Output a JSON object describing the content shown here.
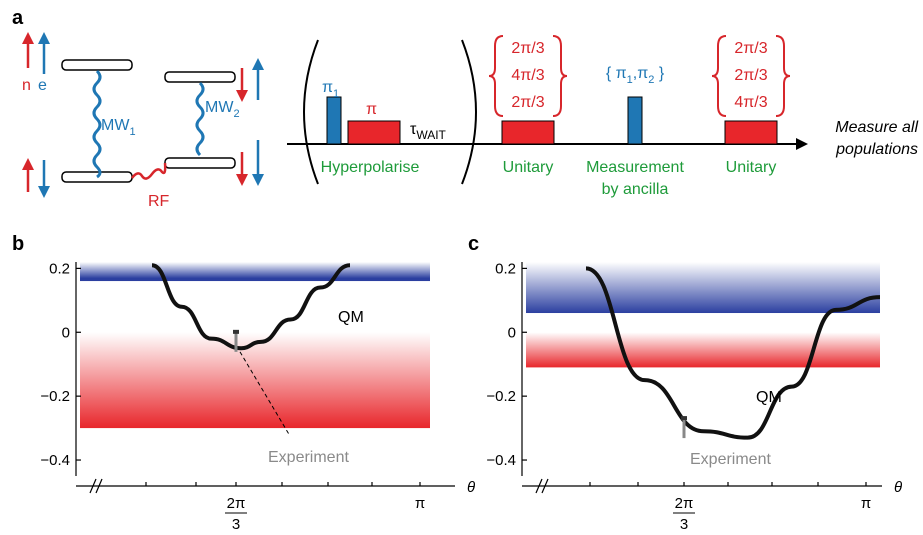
{
  "panels": {
    "a": "a",
    "b": "b",
    "c": "c"
  },
  "diagram": {
    "spin_labels": {
      "n": "n",
      "e": "e"
    },
    "mw1": "MW",
    "mw1_sub": "1",
    "mw2": "MW",
    "mw2_sub": "2",
    "rf": "RF",
    "pi1": "π",
    "pi1_sub": "1",
    "pi": "π",
    "tau": "τ",
    "tau_sub": "WAIT",
    "hyperpolarise": "Hyperpolarise",
    "unitary_left": "Unitary",
    "measurement_line1": "Measurement",
    "measurement_line2": "by ancilla",
    "unitary_right": "Unitary",
    "set_left": [
      "2π/3",
      "4π/3",
      "2π/3"
    ],
    "set_mid": "π1,π2",
    "set_mid_parts": [
      "π",
      "1",
      ",π",
      "2"
    ],
    "set_right": [
      "2π/3",
      "2π/3",
      "4π/3"
    ],
    "measure_line1": "Measure all",
    "measure_line2": "populations"
  },
  "chart_data": [
    {
      "type": "line",
      "panel": "b",
      "ylim": [
        -0.45,
        0.22
      ],
      "yticks": [
        "0.2",
        "0",
        "−0.2",
        "−0.4"
      ],
      "yticks_values": [
        0.2,
        0,
        -0.2,
        -0.4
      ],
      "xticks": [
        "2π",
        "3",
        "π"
      ],
      "xlabel": "θ",
      "bands": {
        "blue_line": 0.16,
        "red_bottom": -0.3
      },
      "series": [
        {
          "name": "QM",
          "x_frac": [
            0.0,
            0.15,
            0.3,
            0.45,
            0.55,
            0.7,
            0.85,
            1.0
          ],
          "y": [
            0.21,
            0.08,
            -0.02,
            -0.05,
            -0.03,
            0.04,
            0.14,
            0.21
          ]
        }
      ],
      "experiment": {
        "label": "Experiment",
        "value": -0.03
      },
      "qm_label": "QM"
    },
    {
      "type": "line",
      "panel": "c",
      "ylim": [
        -0.45,
        0.22
      ],
      "yticks": [
        "0.2",
        "0",
        "−0.2",
        "−0.4"
      ],
      "yticks_values": [
        0.2,
        0,
        -0.2,
        -0.4
      ],
      "xticks": [
        "2π",
        "3",
        "π"
      ],
      "xlabel": "θ",
      "bands": {
        "blue_line": 0.06,
        "red_bottom": -0.11
      },
      "series": [
        {
          "name": "QM",
          "x_frac": [
            0.0,
            0.2,
            0.4,
            0.55,
            0.7,
            0.85,
            1.0
          ],
          "y": [
            0.2,
            -0.15,
            -0.31,
            -0.33,
            -0.17,
            0.07,
            0.11
          ]
        }
      ],
      "experiment": {
        "label": "Experiment",
        "value": -0.3
      },
      "qm_label": "QM"
    }
  ],
  "colors": {
    "red": "#d7262b",
    "blue": "#1f77b4",
    "green": "#1e9b3a",
    "band_blue": "#2b3fa0",
    "band_red": "#e8262b"
  }
}
